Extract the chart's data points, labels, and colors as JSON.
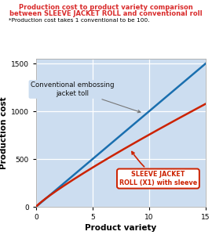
{
  "title_line1": "Production cost to product variety comparison",
  "title_line2": "between SLEEVE JACKET ROLL and conventional roll",
  "subtitle": "*Production cost takes 1 conventional to be 100.",
  "xlabel": "Product variety",
  "ylabel": "Production cost",
  "xlim": [
    0,
    15
  ],
  "ylim": [
    0,
    1550
  ],
  "xticks": [
    0,
    5,
    10,
    15
  ],
  "yticks": [
    0,
    500,
    1000,
    1500
  ],
  "title_color": "#d92b2b",
  "subtitle_color": "#000000",
  "blue_line_color": "#1a6faf",
  "red_line_color": "#cc2200",
  "bg_color": "#ccddf0",
  "annotation_blue_text": "Conventional embossing\njacket toll",
  "annotation_red_text": "SLEEVE JACKET\nROLL (X1) with sleeve",
  "annotation_blue_color": "#111111",
  "annotation_red_color": "#cc2200"
}
